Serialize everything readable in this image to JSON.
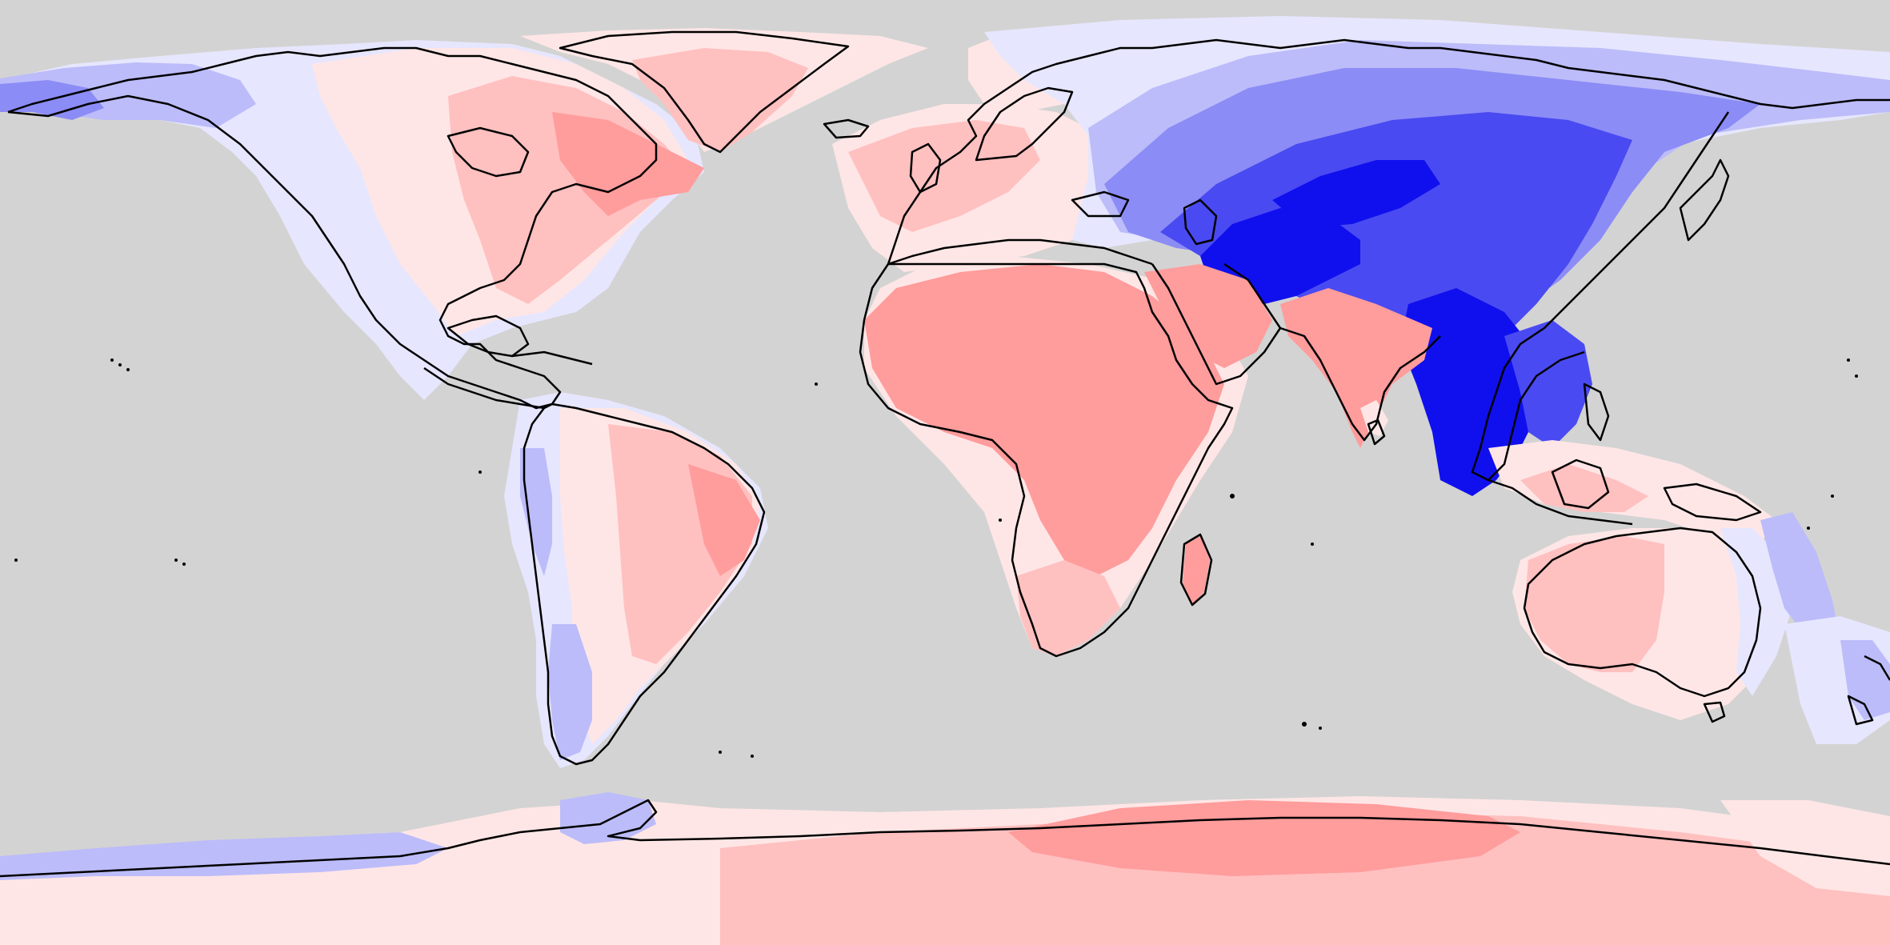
{
  "map": {
    "projection": "equirectangular",
    "background_color": "#d3d3d3",
    "coastline_color": "#000000",
    "palette": {
      "strong_blue": "#1010ee",
      "blue": "#4a4af2",
      "medium_blue": "#8c8cf6",
      "light_blue": "#bcbcfa",
      "pale_blue": "#e6e6fe",
      "pale_red": "#ffe6e6",
      "light_red": "#ffc0c0",
      "red": "#ff9c9c"
    }
  }
}
